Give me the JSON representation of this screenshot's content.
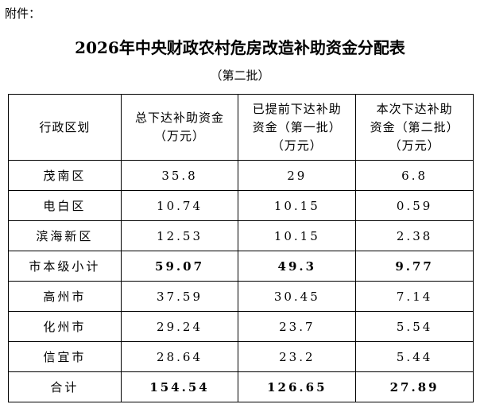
{
  "attachment_label": "附件：",
  "title": "2026年中央财政农村危房改造补助资金分配表",
  "subtitle": "（第二批）",
  "table": {
    "header": [
      [
        "行政区划"
      ],
      [
        "总下达补助资金",
        "（万元）"
      ],
      [
        "已提前下达补助",
        "资金（第一批）",
        "（万元）"
      ],
      [
        "本次下达补助",
        "资金（第二批）",
        "（万元）"
      ]
    ],
    "rows": [
      [
        "茂南区",
        "35.8",
        "29",
        "6.8"
      ],
      [
        "电白区",
        "10.74",
        "10.15",
        "0.59"
      ],
      [
        "滨海新区",
        "12.53",
        "10.15",
        "2.38"
      ],
      [
        "市本级小计",
        "59.07",
        "49.3",
        "9.77"
      ],
      [
        "高州市",
        "37.59",
        "30.45",
        "7.14"
      ],
      [
        "化州市",
        "29.24",
        "23.7",
        "5.54"
      ],
      [
        "信宜市",
        "28.64",
        "23.2",
        "5.44"
      ],
      [
        "合计",
        "154.54",
        "126.65",
        "27.89"
      ]
    ]
  }
}
